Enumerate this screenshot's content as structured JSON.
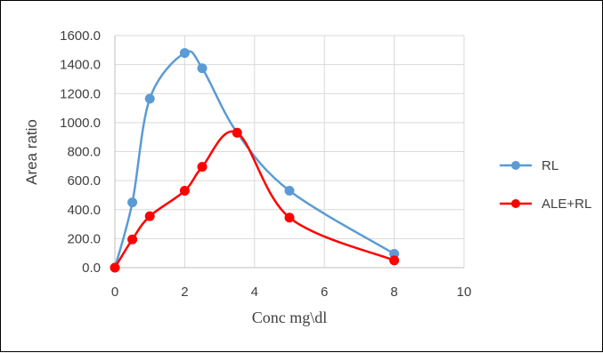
{
  "chart_data": {
    "type": "scatter",
    "xlabel": "Conc mg\\dl",
    "ylabel": "Area ratio",
    "xlim": [
      0,
      10
    ],
    "ylim": [
      0,
      1600
    ],
    "xticks": [
      "0",
      "2",
      "4",
      "6",
      "8",
      "10"
    ],
    "yticks": [
      "0.0",
      "200.0",
      "400.0",
      "600.0",
      "800.0",
      "1000.0",
      "1200.0",
      "1400.0",
      "1600.0"
    ],
    "grid": true,
    "smooth_lines": true,
    "legend_position": "right",
    "series": [
      {
        "name": "RL",
        "color": "#5B9BD5",
        "points": [
          [
            0,
            0
          ],
          [
            0.5,
            450
          ],
          [
            1,
            1165
          ],
          [
            2,
            1480
          ],
          [
            2.5,
            1375
          ],
          [
            3.5,
            930
          ],
          [
            5,
            530
          ],
          [
            8,
            95
          ]
        ]
      },
      {
        "name": "ALE+RL",
        "color": "#FF0000",
        "points": [
          [
            0,
            0
          ],
          [
            0.5,
            195
          ],
          [
            1,
            355
          ],
          [
            2,
            530
          ],
          [
            2.5,
            695
          ],
          [
            3.5,
            930
          ],
          [
            5,
            345
          ],
          [
            8,
            50
          ]
        ]
      }
    ]
  }
}
